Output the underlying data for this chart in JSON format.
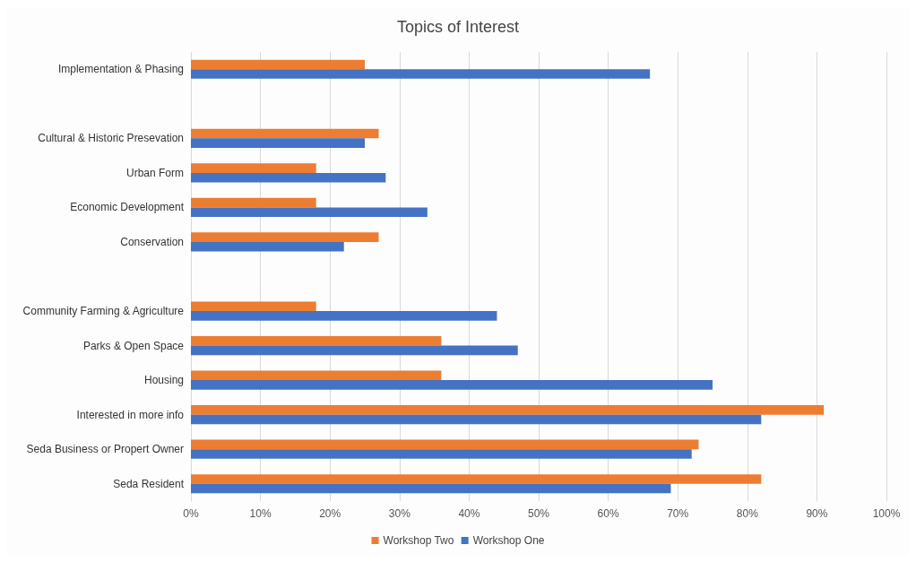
{
  "chart_data": {
    "type": "bar",
    "orientation": "horizontal",
    "title": "Topics of Interest",
    "categories": [
      "Implementation & Phasing",
      null,
      "Cultural & Historic Presevation",
      "Urban Form",
      "Economic Development",
      "Conservation",
      null,
      "Community Farming & Agriculture",
      "Parks & Open Space",
      "Housing",
      "Interested in more info",
      "Seda Business or Propert Owner",
      "Seda Resident"
    ],
    "series": [
      {
        "name": "Workshop Two",
        "color": "#ed7d31",
        "values": [
          25,
          null,
          27,
          18,
          18,
          27,
          null,
          18,
          36,
          36,
          91,
          73,
          82
        ]
      },
      {
        "name": "Workshop One",
        "color": "#4472c4",
        "values": [
          66,
          null,
          25,
          28,
          34,
          22,
          null,
          44,
          47,
          75,
          82,
          72,
          69
        ]
      }
    ],
    "xlim": [
      0,
      100
    ],
    "xticks": [
      {
        "value": 0,
        "label": "0%"
      },
      {
        "value": 10,
        "label": "10%"
      },
      {
        "value": 20,
        "label": "20%"
      },
      {
        "value": 30,
        "label": "30%"
      },
      {
        "value": 40,
        "label": "40%"
      },
      {
        "value": 50,
        "label": "50%"
      },
      {
        "value": 60,
        "label": "60%"
      },
      {
        "value": 70,
        "label": "70%"
      },
      {
        "value": 80,
        "label": "80%"
      },
      {
        "value": 90,
        "label": "90%"
      },
      {
        "value": 100,
        "label": "100%"
      }
    ],
    "grid": "x",
    "legend": "bottom"
  }
}
